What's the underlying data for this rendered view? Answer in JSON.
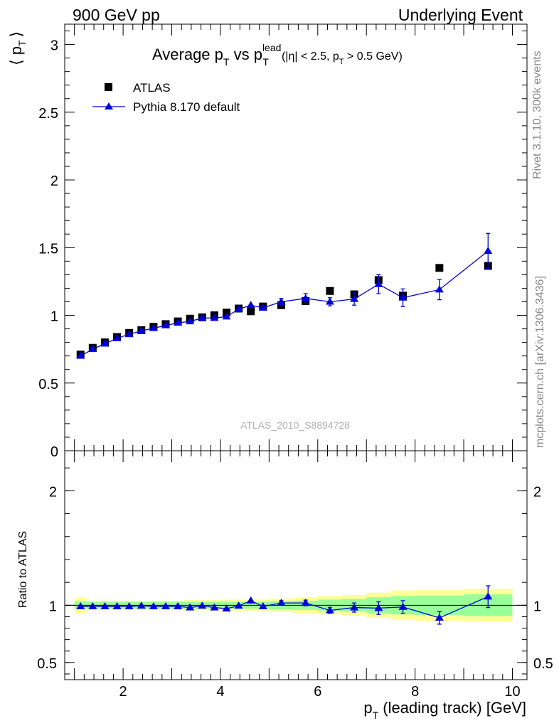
{
  "header": {
    "left": "900 GeV pp",
    "right": "Underlying Event"
  },
  "side_text": {
    "rivet": "Rivet 3.1.10,  300k events",
    "mcplots": "mcplots.cern.ch [arXiv:1306.3436]"
  },
  "colors": {
    "data": "#000000",
    "mc": "#0000dd",
    "band_inner": "#99ff99",
    "band_outer": "#ffff99"
  },
  "chart_data": [
    {
      "type": "scatter",
      "title": "Average p_T vs p_T^lead (|η| < 2.5, p_T > 0.5 GeV)",
      "title_parts": {
        "main": "Average p",
        "sub1": "T",
        "vs": " vs p",
        "sup": "lead",
        "sub2": "T",
        "cut_a": "(|η| < 2.5, p",
        "cut_sub": "T",
        "cut_b": " > 0.5 GeV)"
      },
      "ylabel": "⟨ p_T ⟩",
      "ylabel_parts": {
        "left": "⟨ p",
        "sub": "T",
        "right": "⟩"
      },
      "watermark": "ATLAS_2010_S8894728",
      "xlim": [
        0.8,
        10.3
      ],
      "ylim": [
        0,
        3.15
      ],
      "yticks": [
        0,
        0.5,
        1,
        1.5,
        2,
        2.5,
        3
      ],
      "ytick_labels": [
        "0",
        "0.5",
        "1",
        "1.5",
        "2",
        "2.5",
        "3"
      ],
      "legend_position": "top-left",
      "series": [
        {
          "name": "ATLAS",
          "marker": "square",
          "x": [
            1.125,
            1.375,
            1.625,
            1.875,
            2.125,
            2.375,
            2.625,
            2.875,
            3.125,
            3.375,
            3.625,
            3.875,
            4.125,
            4.375,
            4.625,
            4.875,
            5.25,
            5.75,
            6.25,
            6.75,
            7.25,
            7.75,
            8.5,
            9.5
          ],
          "y": [
            0.71,
            0.76,
            0.8,
            0.84,
            0.87,
            0.89,
            0.915,
            0.935,
            0.955,
            0.975,
            0.985,
            1.0,
            1.02,
            1.05,
            1.03,
            1.065,
            1.075,
            1.105,
            1.18,
            1.155,
            1.26,
            1.145,
            1.35,
            1.365
          ]
        },
        {
          "name": "Pythia 8.170 default",
          "marker": "triangle",
          "x": [
            1.125,
            1.375,
            1.625,
            1.875,
            2.125,
            2.375,
            2.625,
            2.875,
            3.125,
            3.375,
            3.625,
            3.875,
            4.125,
            4.375,
            4.625,
            4.875,
            5.25,
            5.75,
            6.25,
            6.75,
            7.25,
            7.75,
            8.5,
            9.5
          ],
          "y": [
            0.7,
            0.75,
            0.79,
            0.83,
            0.86,
            0.885,
            0.905,
            0.925,
            0.945,
            0.955,
            0.98,
            0.98,
            0.99,
            1.045,
            1.075,
            1.055,
            1.1,
            1.125,
            1.1,
            1.12,
            1.23,
            1.13,
            1.19,
            1.475
          ],
          "yerr": [
            0,
            0,
            0,
            0,
            0,
            0,
            0,
            0,
            0,
            0,
            0,
            0,
            0,
            0,
            0,
            0,
            0.025,
            0.035,
            0.03,
            0.045,
            0.07,
            0.065,
            0.075,
            0.13
          ]
        }
      ]
    },
    {
      "type": "scatter",
      "ylabel": "Ratio to ATLAS",
      "xlabel": "p_T (leading track) [GeV]",
      "xlabel_parts": {
        "main": "p",
        "sub": "T",
        "rest": " (leading track) [GeV]"
      },
      "xlim": [
        0.8,
        10.3
      ],
      "ylim": [
        0.35,
        2.35
      ],
      "xticks": [
        2,
        4,
        6,
        8,
        10
      ],
      "xtick_labels": [
        "2",
        "4",
        "6",
        "8",
        "10"
      ],
      "yticks": [
        0.5,
        1,
        2
      ],
      "ytick_labels": [
        "0.5",
        "1",
        "2"
      ],
      "bands": {
        "edges": [
          1.0,
          1.25,
          1.5,
          1.75,
          2.0,
          2.25,
          2.5,
          2.75,
          3.0,
          3.25,
          3.5,
          3.75,
          4.0,
          4.25,
          4.5,
          4.75,
          5.0,
          5.5,
          6.0,
          6.5,
          7.0,
          7.5,
          8.0,
          9.0,
          10.0
        ],
        "inner": [
          0.035,
          0.03,
          0.03,
          0.03,
          0.03,
          0.03,
          0.03,
          0.03,
          0.03,
          0.03,
          0.03,
          0.03,
          0.03,
          0.03,
          0.03,
          0.03,
          0.035,
          0.04,
          0.05,
          0.055,
          0.07,
          0.08,
          0.085,
          0.095
        ],
        "outer": [
          0.07,
          0.04,
          0.04,
          0.04,
          0.04,
          0.04,
          0.04,
          0.04,
          0.04,
          0.045,
          0.045,
          0.045,
          0.05,
          0.05,
          0.05,
          0.05,
          0.06,
          0.07,
          0.08,
          0.09,
          0.11,
          0.13,
          0.135,
          0.145
        ]
      },
      "series": [
        {
          "name": "Pythia 8.170 default",
          "marker": "triangle",
          "x": [
            1.125,
            1.375,
            1.625,
            1.875,
            2.125,
            2.375,
            2.625,
            2.875,
            3.125,
            3.375,
            3.625,
            3.875,
            4.125,
            4.375,
            4.625,
            4.875,
            5.25,
            5.75,
            6.25,
            6.75,
            7.25,
            7.75,
            8.5,
            9.5
          ],
          "y": [
            0.99,
            0.99,
            0.99,
            0.99,
            0.99,
            0.995,
            0.99,
            0.99,
            0.99,
            0.98,
            0.995,
            0.98,
            0.97,
            0.995,
            1.04,
            0.99,
            1.02,
            1.02,
            0.955,
            0.98,
            0.975,
            0.985,
            0.89,
            1.075
          ],
          "yerr": [
            0,
            0,
            0,
            0,
            0,
            0,
            0,
            0,
            0,
            0,
            0,
            0,
            0,
            0,
            0,
            0,
            0.02,
            0.025,
            0.025,
            0.04,
            0.055,
            0.055,
            0.055,
            0.095
          ]
        }
      ]
    }
  ]
}
